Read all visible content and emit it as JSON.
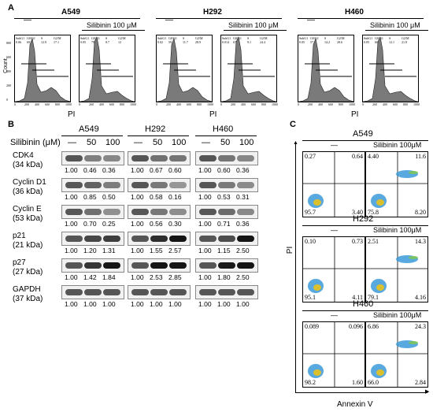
{
  "panel_a": {
    "label": "A",
    "treat_label": "Silibinin 100 μM",
    "control_label": "—",
    "x_label": "PI",
    "y_label": "Count",
    "x_ticks": [
      "0",
      "200",
      "400",
      "600",
      "800",
      "1000"
    ],
    "y_ticks": [
      "0",
      "200",
      "400",
      "600",
      "800"
    ],
    "stat_headers": [
      "SubG1",
      "G0/G1",
      "S",
      "G2/M"
    ],
    "cell_lines": [
      {
        "name": "A549",
        "plots": [
          {
            "subg1": "0.06",
            "g0g1": "69.8",
            "s": "12.9",
            "g2m": "17.1"
          },
          {
            "subg1": "0.05",
            "g0g1": "79.3",
            "s": "8.7",
            "g2m": "12"
          }
        ]
      },
      {
        "name": "H292",
        "plots": [
          {
            "subg1": "0.02",
            "g0g1": "59.1",
            "s": "11.7",
            "g2m": "28.9"
          },
          {
            "subg1": "0.014",
            "g0g1": "67.2",
            "s": "9.1",
            "g2m": "24.4"
          }
        ]
      },
      {
        "name": "H460",
        "plots": [
          {
            "subg1": "0.05",
            "g0g1": "57.1",
            "s": "14.2",
            "g2m": "28.6"
          },
          {
            "subg1": "0.05",
            "g0g1": "66",
            "s": "12.1",
            "g2m": "21.8"
          }
        ]
      }
    ]
  },
  "panel_b": {
    "label": "B",
    "dose_label": "Silibinin (μM)",
    "doses": [
      "—",
      "50",
      "100"
    ],
    "cell_lines": [
      "A549",
      "H292",
      "H460"
    ],
    "rows": [
      {
        "protein": "CDK4",
        "kda": "(34 kDa)",
        "values": [
          [
            "1.00",
            "0.46",
            "0.36"
          ],
          [
            "1.00",
            "0.67",
            "0.60"
          ],
          [
            "1.00",
            "0.60",
            "0.36"
          ]
        ]
      },
      {
        "protein": "Cyclin D1",
        "kda": "(36 kDa)",
        "values": [
          [
            "1.00",
            "0.85",
            "0.50"
          ],
          [
            "1.00",
            "0.58",
            "0.16"
          ],
          [
            "1.00",
            "0.53",
            "0.31"
          ]
        ]
      },
      {
        "protein": "Cyclin E",
        "kda": "(53 kDa)",
        "values": [
          [
            "1.00",
            "0.70",
            "0.25"
          ],
          [
            "1.00",
            "0.56",
            "0.30"
          ],
          [
            "1.00",
            "0.71",
            "0.36"
          ]
        ]
      },
      {
        "protein": "p21",
        "kda": "(21 kDa)",
        "values": [
          [
            "1.00",
            "1.20",
            "1.31"
          ],
          [
            "1.00",
            "1.55",
            "2.57"
          ],
          [
            "1.00",
            "1.15",
            "2.50"
          ]
        ]
      },
      {
        "protein": "p27",
        "kda": "(27 kDa)",
        "values": [
          [
            "1.00",
            "1.42",
            "1.84"
          ],
          [
            "1.00",
            "2.53",
            "2.85"
          ],
          [
            "1.00",
            "1.80",
            "2.50"
          ]
        ]
      },
      {
        "protein": "GAPDH",
        "kda": "(37 kDa)",
        "values": [
          [
            "1.00",
            "1.00",
            "1.00"
          ],
          [
            "1.00",
            "1.00",
            "1.00"
          ],
          [
            "1.00",
            "1.00",
            "1.00"
          ]
        ]
      }
    ]
  },
  "panel_c": {
    "label": "C",
    "x_label": "Annexin V",
    "y_label": "PI",
    "control_label": "—",
    "treat_label": "Silibinin 100μM",
    "cell_lines": [
      {
        "name": "A549",
        "plots": [
          {
            "ul": "0.27",
            "ur": "0.64",
            "ll": "95.7",
            "lr": "3.40"
          },
          {
            "ul": "4.40",
            "ur": "11.6",
            "ll": "75.8",
            "lr": "8.20"
          }
        ]
      },
      {
        "name": "H292",
        "plots": [
          {
            "ul": "0.10",
            "ur": "0.73",
            "ll": "95.1",
            "lr": "4.11"
          },
          {
            "ul": "2.51",
            "ur": "14.3",
            "ll": "79.1",
            "lr": "4.16"
          }
        ]
      },
      {
        "name": "H460",
        "plots": [
          {
            "ul": "0.089",
            "ur": "0.096",
            "ll": "98.2",
            "lr": "1.60"
          },
          {
            "ul": "6.86",
            "ur": "24.3",
            "ll": "66.0",
            "lr": "2.84"
          }
        ]
      }
    ]
  }
}
